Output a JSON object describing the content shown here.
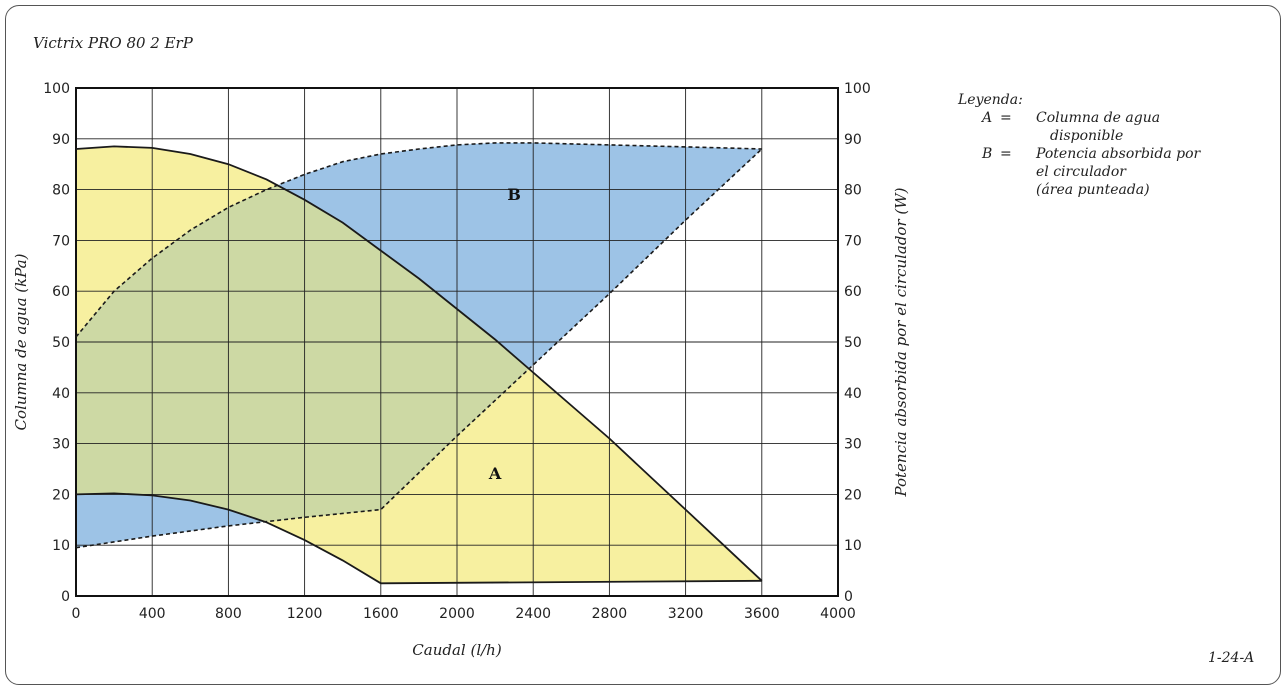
{
  "page": {
    "title": "Victrix PRO 80 2 ErP",
    "reference": "1-24-A",
    "legend": {
      "heading": "Leyenda:",
      "items": [
        {
          "key": "A",
          "eq": "=",
          "lines": [
            "Columna de agua",
            "disponible"
          ]
        },
        {
          "key": "B",
          "eq": "=",
          "lines": [
            "Potencia absorbida por",
            "el circulador",
            "(área punteada)"
          ]
        }
      ]
    }
  },
  "chart_data": {
    "type": "area",
    "title": "Victrix PRO 80 2 ErP",
    "xlabel": "Caudal (l/h)",
    "ylabel": "Columna de agua (kPa)",
    "y2label": "Potencia absorbida por el circulador (W)",
    "xlim": [
      0,
      4000
    ],
    "ylim": [
      0,
      100
    ],
    "y2lim": [
      0,
      100
    ],
    "xticks": [
      0,
      400,
      800,
      1200,
      1600,
      2000,
      2400,
      2800,
      3200,
      3600,
      4000
    ],
    "yticks": [
      0,
      10,
      20,
      30,
      40,
      50,
      60,
      70,
      80,
      90,
      100
    ],
    "y2ticks": [
      0,
      10,
      20,
      30,
      40,
      50,
      60,
      70,
      80,
      90,
      100
    ],
    "grid": true,
    "colors": {
      "area_A": "#f7f0a0",
      "area_B": "#9dc3e6",
      "overlap": "#cdd9a4",
      "line": "#1a1a1a"
    },
    "area_labels": [
      {
        "text": "A",
        "x": 2200,
        "y": 23
      },
      {
        "text": "B",
        "x": 2300,
        "y": 78
      }
    ],
    "series": [
      {
        "label": "A",
        "style": "solid",
        "x": [
          0,
          200,
          400,
          600,
          800,
          1000,
          1200,
          1400,
          1600,
          1800,
          2000,
          2200,
          2400,
          2600,
          2800,
          3000,
          3200,
          3400,
          3600
        ],
        "y": [
          88,
          88.5,
          88.2,
          87,
          85,
          82,
          78,
          73.5,
          68,
          62.5,
          56.5,
          50.5,
          44,
          37.5,
          31,
          24,
          17,
          10,
          3
        ]
      },
      {
        "label": "A",
        "style": "solid",
        "x": [
          0,
          200,
          400,
          600,
          800,
          1000,
          1200,
          1400,
          1600
        ],
        "y": [
          20,
          20.2,
          19.8,
          18.8,
          17,
          14.5,
          11,
          7,
          2.5
        ]
      },
      {
        "label": "A",
        "style": "solid",
        "x": [
          1600,
          3600
        ],
        "y": [
          2.5,
          3
        ]
      },
      {
        "label": "B",
        "style": "dashed",
        "x": [
          0,
          200,
          400,
          600,
          800,
          1000,
          1200,
          1400,
          1600,
          1800,
          2000,
          2200,
          2400,
          2600,
          2800,
          3000,
          3200,
          3400,
          3600
        ],
        "y": [
          51,
          60,
          66.5,
          72,
          76.5,
          80,
          83,
          85.5,
          87,
          88,
          88.8,
          89.2,
          89.2,
          89,
          88.8,
          88.6,
          88.4,
          88.2,
          88
        ]
      },
      {
        "label": "B",
        "style": "dashed",
        "x": [
          0,
          400,
          800,
          1200,
          1600,
          2000,
          2400,
          2800,
          3200,
          3600
        ],
        "y": [
          9.5,
          11.8,
          13.8,
          15.5,
          17,
          31.5,
          45.5,
          59.5,
          74,
          88
        ]
      }
    ]
  }
}
